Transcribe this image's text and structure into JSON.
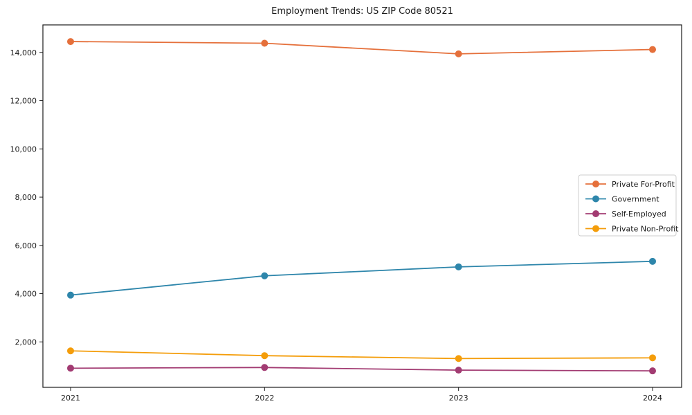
{
  "chart_data": {
    "type": "line",
    "title": "Employment Trends: US ZIP Code 80521",
    "categories": [
      "2021",
      "2022",
      "2023",
      "2024"
    ],
    "series": [
      {
        "name": "Private For-Profit",
        "color": "#E5703B",
        "values": [
          14450,
          14380,
          13940,
          14120
        ]
      },
      {
        "name": "Government",
        "color": "#2E86AB",
        "values": [
          3940,
          4740,
          5110,
          5340
        ]
      },
      {
        "name": "Self-Employed",
        "color": "#A23B72",
        "values": [
          910,
          940,
          830,
          800
        ]
      },
      {
        "name": "Private Non-Profit",
        "color": "#F49D0A",
        "values": [
          1630,
          1430,
          1310,
          1340
        ]
      }
    ],
    "xlabel": "",
    "ylabel": "",
    "ylim": [
      117,
      15140
    ],
    "yticks": [
      2000,
      4000,
      6000,
      8000,
      10000,
      12000,
      14000
    ],
    "ytick_labels": [
      "2,000",
      "4,000",
      "6,000",
      "8,000",
      "10,000",
      "12,000",
      "14,000"
    ],
    "grid": false,
    "legend_position": "center-right",
    "marker": "circle",
    "axis_color": "#1a1a1a",
    "text_color": "#1a1a1a",
    "legend_border_color": "#cccccc",
    "legend_fill": "#ffffff"
  }
}
